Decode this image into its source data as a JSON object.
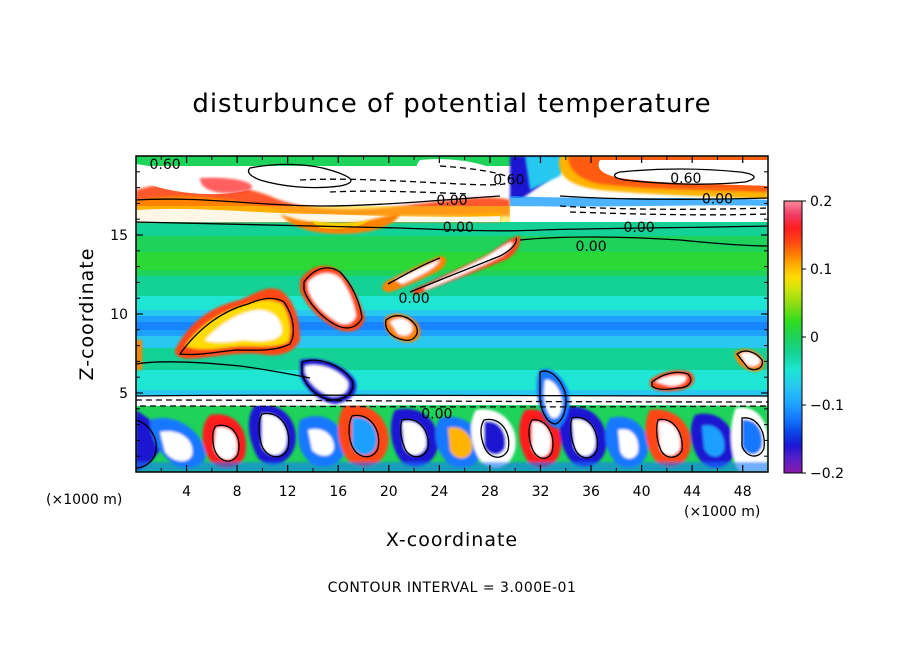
{
  "chart_data": {
    "type": "heatmap",
    "title": "disturbunce of potential temperature",
    "xlabel": "X-coordinate",
    "ylabel": "Z-coordinate",
    "x_unit_left": "(×1000 m)",
    "x_unit_right": "(×1000 m)",
    "footer": "CONTOUR INTERVAL = 3.000E-01",
    "xlim": [
      0,
      50
    ],
    "ylim": [
      0,
      20
    ],
    "x_ticks": [
      4,
      8,
      12,
      16,
      20,
      24,
      28,
      32,
      36,
      40,
      44,
      48
    ],
    "y_ticks": [
      5,
      10,
      15
    ],
    "colorbar": {
      "range": [
        -0.2,
        0.2
      ],
      "tick_values": [
        0.2,
        0.1,
        0,
        -0.1,
        -0.2
      ],
      "tick_labels": [
        "0.2",
        "0.1",
        "0",
        "−0.1",
        "−0.2"
      ],
      "colors": [
        "#8a1aa8",
        "#5a20c8",
        "#1e14d2",
        "#0a46e6",
        "#1478ff",
        "#1ea0ff",
        "#28c8f0",
        "#1ee6d2",
        "#14d296",
        "#1ed25a",
        "#32dc1e",
        "#8cdc14",
        "#d2e60a",
        "#ffdc00",
        "#ffb400",
        "#ff8200",
        "#ff4614",
        "#ff1e1e",
        "#f03c64",
        "#ff8ca0"
      ]
    },
    "contour_labels": [
      {
        "text": "0.60",
        "x": 2.3,
        "z": 19.5
      },
      {
        "text": "0.60",
        "x": 29.5,
        "z": 18.5
      },
      {
        "text": "0.60",
        "x": 43.5,
        "z": 18.6
      },
      {
        "text": "0.00",
        "x": 25.0,
        "z": 17.2
      },
      {
        "text": "0.00",
        "x": 46.0,
        "z": 17.3
      },
      {
        "text": "0.00",
        "x": 25.5,
        "z": 15.5
      },
      {
        "text": "0.00",
        "x": 39.8,
        "z": 15.5
      },
      {
        "text": "0.00",
        "x": 36.0,
        "z": 14.3
      },
      {
        "text": "0.00",
        "x": 22.0,
        "z": 11.0
      },
      {
        "text": "0.00",
        "x": 23.8,
        "z": 3.7
      }
    ]
  }
}
